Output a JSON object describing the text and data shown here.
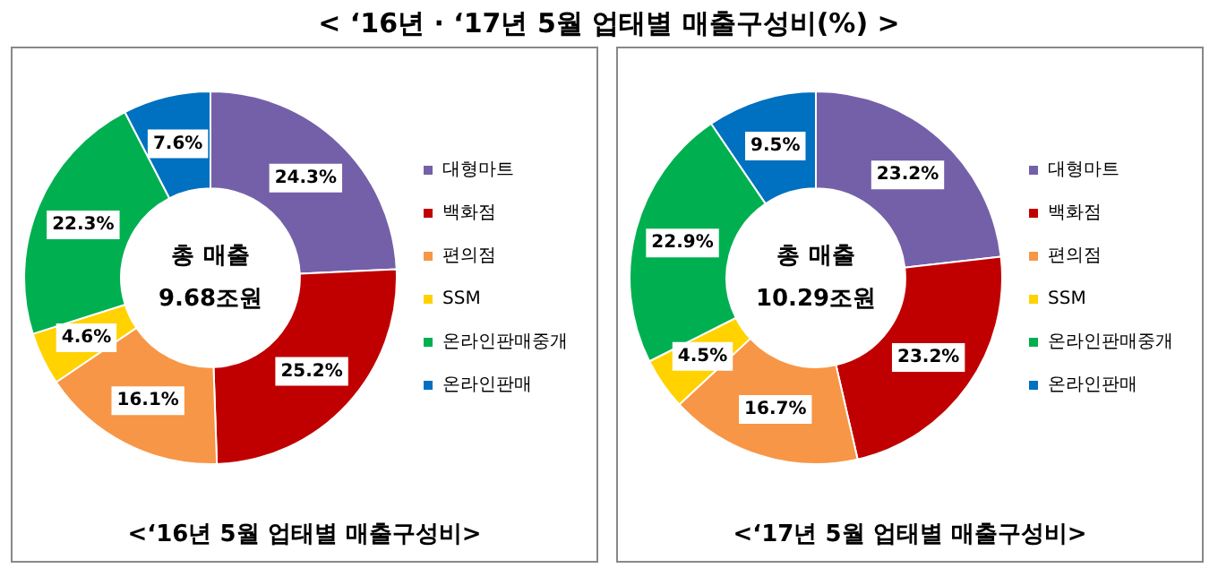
{
  "chart_data": [
    {
      "type": "donut",
      "title": "< ‘16년 · ‘17년 5월 업태별 매출구성비(%) >",
      "xlabel": "<‘16년 5월 업태별 매출구성비>",
      "categories": [
        "대형마트",
        "백화점",
        "편의점",
        "SSM",
        "온라인판매중개",
        "온라인판매"
      ],
      "values": [
        24.3,
        25.2,
        16.1,
        4.6,
        22.3,
        7.6
      ],
      "value_labels": [
        "24.3%",
        "25.2%",
        "16.1%",
        "4.6%",
        "22.3%",
        "7.6%"
      ],
      "colors": [
        "#7460a8",
        "#c00000",
        "#f79646",
        "#ffd200",
        "#00b050",
        "#0070c0"
      ],
      "annotations": [
        "총 매출",
        "9.68조원"
      ],
      "legend": "right"
    },
    {
      "type": "donut",
      "xlabel": "<‘17년 5월 업태별 매출구성비>",
      "categories": [
        "대형마트",
        "백화점",
        "편의점",
        "SSM",
        "온라인판매중개",
        "온라인판매"
      ],
      "values": [
        23.2,
        23.2,
        16.7,
        4.5,
        22.9,
        9.5
      ],
      "value_labels": [
        "23.2%",
        "23.2%",
        "16.7%",
        "4.5%",
        "22.9%",
        "9.5%"
      ],
      "colors": [
        "#7460a8",
        "#c00000",
        "#f79646",
        "#ffd200",
        "#00b050",
        "#0070c0"
      ],
      "annotations": [
        "총 매출",
        "10.29조원"
      ],
      "legend": "right"
    }
  ]
}
